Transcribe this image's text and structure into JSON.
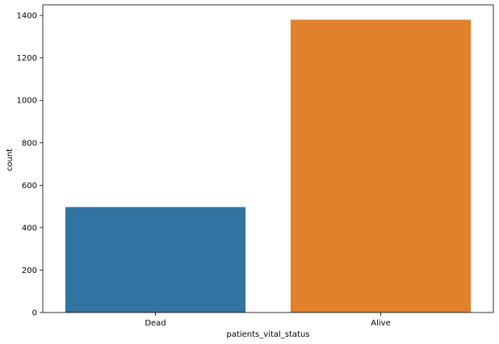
{
  "chart_data": {
    "type": "bar",
    "categories": [
      "Dead",
      "Alive"
    ],
    "values": [
      497,
      1380
    ],
    "colors": [
      "#3274a1",
      "#e1812c"
    ],
    "title": "",
    "xlabel": "patients_vital_status",
    "ylabel": "count",
    "ylim": [
      0,
      1450
    ],
    "yticks": [
      0,
      200,
      400,
      600,
      800,
      1000,
      1200,
      1400
    ],
    "grid": false,
    "legend": "none"
  }
}
